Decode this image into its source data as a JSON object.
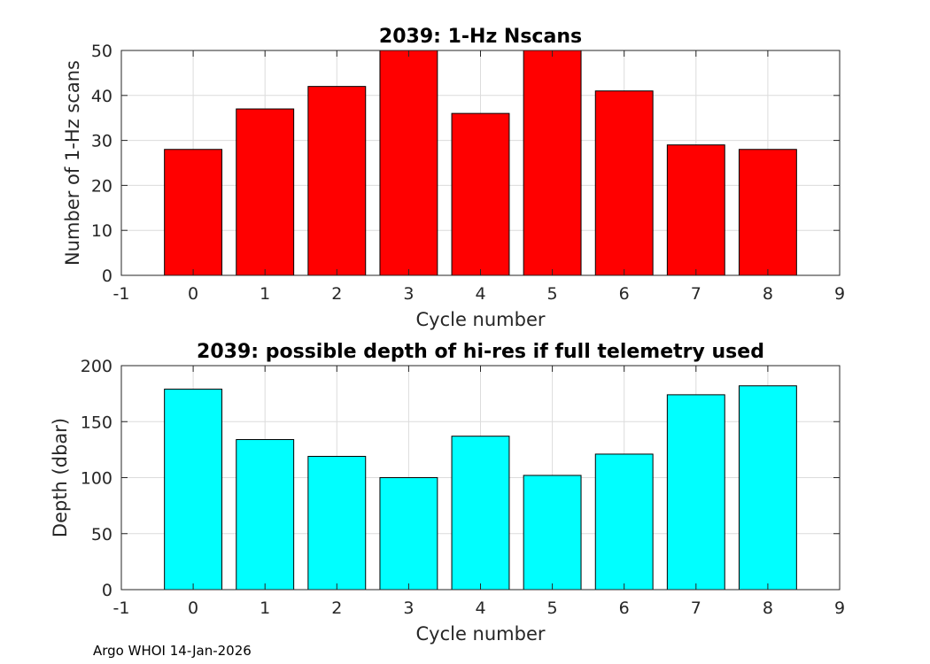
{
  "chart_data": [
    {
      "type": "bar",
      "title": "2039: 1-Hz Nscans",
      "xlabel": "Cycle number",
      "ylabel": "Number of 1-Hz scans",
      "categories": [
        0,
        1,
        2,
        3,
        4,
        5,
        6,
        7,
        8
      ],
      "values": [
        28,
        37,
        42,
        50,
        36,
        50,
        41,
        29,
        28
      ],
      "xlim": [
        -1,
        9
      ],
      "ylim": [
        0,
        50
      ],
      "xticks": [
        "-1",
        "0",
        "1",
        "2",
        "3",
        "4",
        "5",
        "6",
        "7",
        "8",
        "9"
      ],
      "yticks": [
        "0",
        "10",
        "20",
        "30",
        "40",
        "50"
      ],
      "bar_color": "#ff0000",
      "grid": true
    },
    {
      "type": "bar",
      "title": "2039: possible depth of hi-res if full telemetry used",
      "xlabel": "Cycle number",
      "ylabel": "Depth (dbar)",
      "categories": [
        0,
        1,
        2,
        3,
        4,
        5,
        6,
        7,
        8
      ],
      "values": [
        179,
        134,
        119,
        100,
        137,
        102,
        121,
        174,
        182
      ],
      "xlim": [
        -1,
        9
      ],
      "ylim": [
        0,
        200
      ],
      "xticks": [
        "-1",
        "0",
        "1",
        "2",
        "3",
        "4",
        "5",
        "6",
        "7",
        "8",
        "9"
      ],
      "yticks": [
        "0",
        "50",
        "100",
        "150",
        "200"
      ],
      "bar_color": "#00ffff",
      "grid": true
    }
  ],
  "footer": "Argo WHOI 14-Jan-2026"
}
